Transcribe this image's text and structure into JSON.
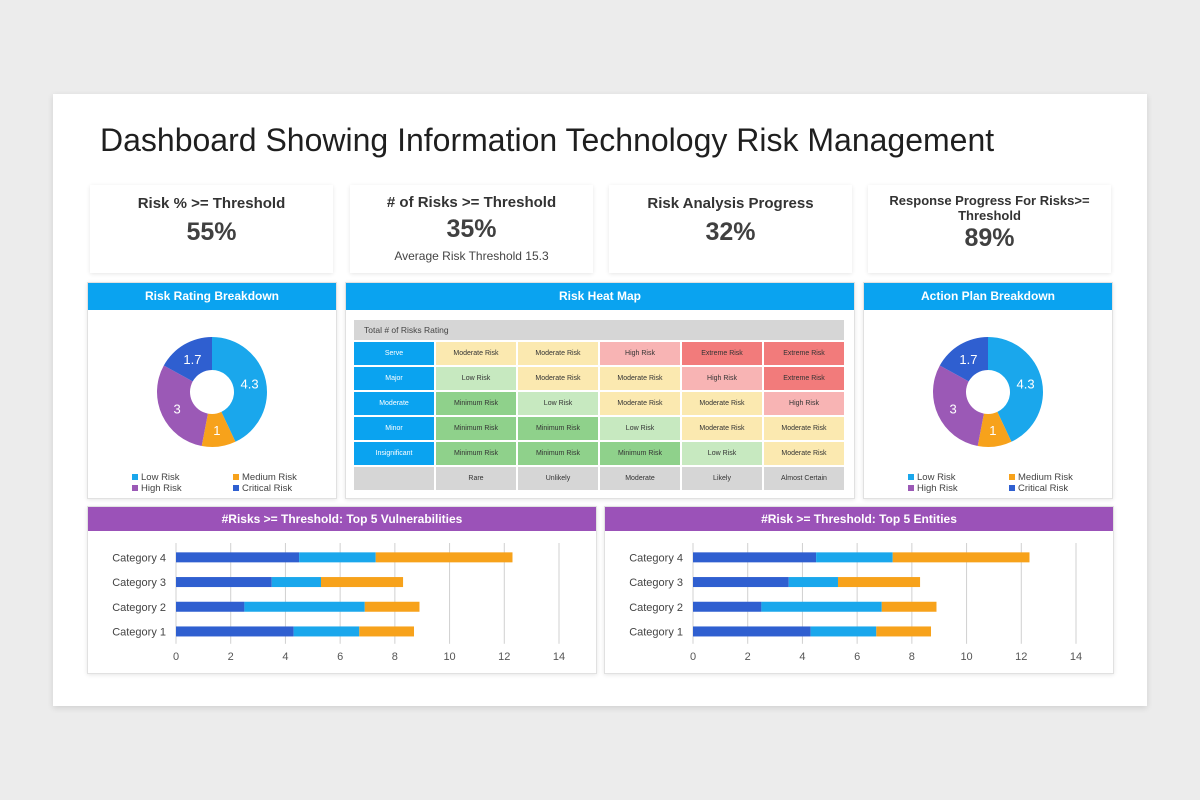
{
  "title": "Dashboard Showing Information Technology Risk Management",
  "kpis": [
    {
      "label": "Risk % >= Threshold",
      "value": "55%",
      "sub": ""
    },
    {
      "label": "# of Risks >= Threshold",
      "value": "35%",
      "sub": "Average Risk Threshold 15.3"
    },
    {
      "label": "Risk Analysis Progress",
      "value": "32%",
      "sub": ""
    },
    {
      "label": "Response Progress For Risks>= Threshold",
      "value": "89%",
      "sub": ""
    }
  ],
  "panels": {
    "risk_rating": "Risk Rating Breakdown",
    "heat_map": "Risk Heat Map",
    "action_plan": "Action Plan Breakdown",
    "vulnerabilities": "#Risks >= Threshold: Top 5 Vulnerabilities",
    "entities": "#Risk >= Threshold: Top 5 Entities"
  },
  "colors": {
    "low": "#1aa7ec",
    "medium": "#f7a21b",
    "high": "#9b59b6",
    "critical": "#2f5fd0",
    "header_blue": "#0aa3f0",
    "header_purple": "#9b52b8"
  },
  "heat_map": {
    "header": "Total # of Risks Rating",
    "rows": [
      {
        "label": "Serve",
        "cells": [
          "Moderate Risk",
          "Moderate Risk",
          "High Risk",
          "Extreme Risk",
          "Extreme Risk"
        ]
      },
      {
        "label": "Major",
        "cells": [
          "Low Risk",
          "Moderate Risk",
          "Moderate Risk",
          "High Risk",
          "Extreme Risk"
        ]
      },
      {
        "label": "Moderate",
        "cells": [
          "Minimum Risk",
          "Low Risk",
          "Moderate Risk",
          "Moderate Risk",
          "High Risk"
        ]
      },
      {
        "label": "Minor",
        "cells": [
          "Minimum Risk",
          "Minimum Risk",
          "Low Risk",
          "Moderate Risk",
          "Moderate Risk"
        ]
      },
      {
        "label": "Insignificant",
        "cells": [
          "Minimum Risk",
          "Minimum Risk",
          "Minimum Risk",
          "Low Risk",
          "Moderate Risk"
        ]
      }
    ],
    "columns": [
      "Rare",
      "Unlikely",
      "Moderate",
      "Likely",
      "Almost Certain"
    ],
    "level_colors": {
      "Minimum Risk": "#8fd18b",
      "Low Risk": "#c7e9c0",
      "Moderate Risk": "#fbe9b0",
      "High Risk": "#f8b4b4",
      "Extreme Risk": "#f27b7b"
    }
  },
  "chart_data": [
    {
      "type": "pie",
      "title": "Risk Rating Breakdown",
      "labels": [
        "Low Risk",
        "Medium Risk",
        "High Risk",
        "Critical Risk"
      ],
      "values": [
        4.3,
        1,
        3,
        1.7
      ],
      "value_labels": [
        "4.3",
        "1",
        "3",
        "1.7"
      ],
      "colors": [
        "#1aa7ec",
        "#f7a21b",
        "#9b59b6",
        "#2f5fd0"
      ],
      "legend": "bottom"
    },
    {
      "type": "pie",
      "title": "Action Plan Breakdown",
      "labels": [
        "Low Risk",
        "Medium Risk",
        "High Risk",
        "Critical Risk"
      ],
      "values": [
        4.3,
        1,
        3,
        1.7
      ],
      "value_labels": [
        "4.3",
        "1",
        "3",
        "1.7"
      ],
      "colors": [
        "#1aa7ec",
        "#f7a21b",
        "#9b59b6",
        "#2f5fd0"
      ],
      "legend": "bottom"
    },
    {
      "type": "bar",
      "orientation": "horizontal",
      "stacked": true,
      "title": "#Risks >= Threshold: Top 5 Vulnerabilities",
      "categories": [
        "Category 1",
        "Category 2",
        "Category 3",
        "Category 4"
      ],
      "series": [
        {
          "values": [
            4.3,
            2.5,
            3.5,
            4.5
          ]
        },
        {
          "values": [
            2.4,
            4.4,
            1.8,
            2.8
          ]
        },
        {
          "values": [
            2.0,
            2.0,
            3.0,
            5.0
          ]
        }
      ],
      "series_colors": [
        "#2f5fd0",
        "#1aa7ec",
        "#f7a21b"
      ],
      "xticks": [
        "0",
        "2",
        "4",
        "6",
        "8",
        "10",
        "12",
        "14"
      ],
      "xlim": [
        0,
        14
      ],
      "grid": true
    },
    {
      "type": "bar",
      "orientation": "horizontal",
      "stacked": true,
      "title": "#Risk >= Threshold: Top 5 Entities",
      "categories": [
        "Category 1",
        "Category 2",
        "Category 3",
        "Category 4"
      ],
      "series": [
        {
          "values": [
            4.3,
            2.5,
            3.5,
            4.5
          ]
        },
        {
          "values": [
            2.4,
            4.4,
            1.8,
            2.8
          ]
        },
        {
          "values": [
            2.0,
            2.0,
            3.0,
            5.0
          ]
        }
      ],
      "series_colors": [
        "#2f5fd0",
        "#1aa7ec",
        "#f7a21b"
      ],
      "xticks": [
        "0",
        "2",
        "4",
        "6",
        "8",
        "10",
        "12",
        "14"
      ],
      "xlim": [
        0,
        14
      ],
      "grid": true
    }
  ]
}
